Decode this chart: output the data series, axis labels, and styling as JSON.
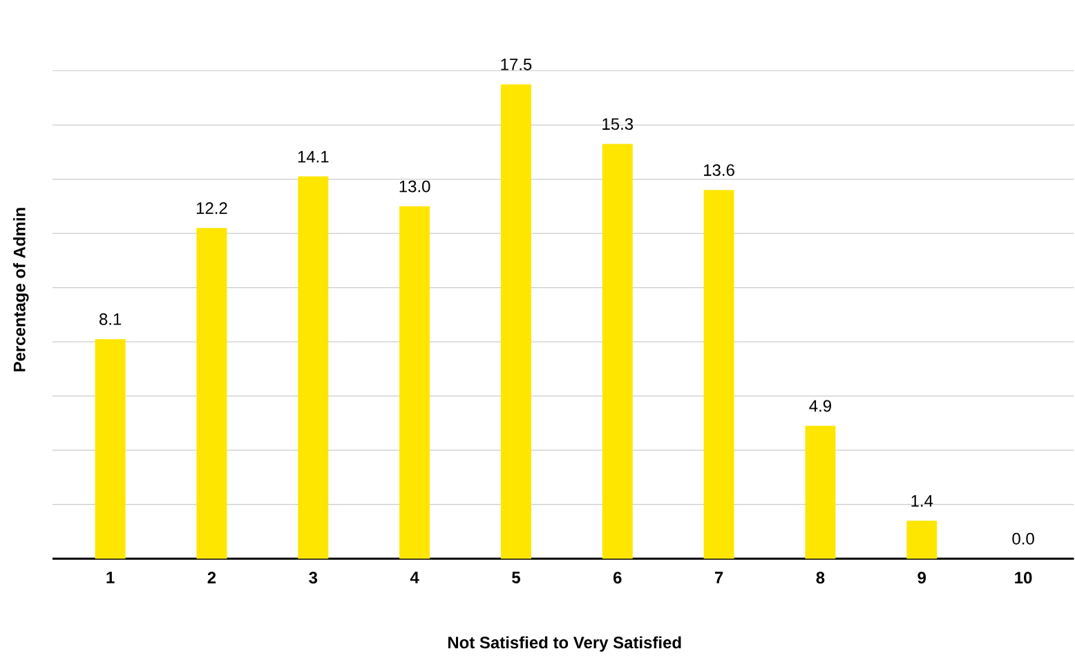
{
  "chart_data": {
    "type": "bar",
    "xlabel": "Not Satisfied to Very Satisfied",
    "ylabel": "Percentage of Admin",
    "categories": [
      "1",
      "2",
      "3",
      "4",
      "5",
      "6",
      "7",
      "8",
      "9",
      "10"
    ],
    "values": [
      8.1,
      12.2,
      14.1,
      13.0,
      17.5,
      15.3,
      13.6,
      4.9,
      1.4,
      0.0
    ],
    "value_labels": [
      "8.1",
      "12.2",
      "14.1",
      "13.0",
      "17.5",
      "15.3",
      "13.6",
      "4.9",
      "1.4",
      "0.0"
    ],
    "color": "#ffe600",
    "tick_labels": "x",
    "grid": "y"
  }
}
